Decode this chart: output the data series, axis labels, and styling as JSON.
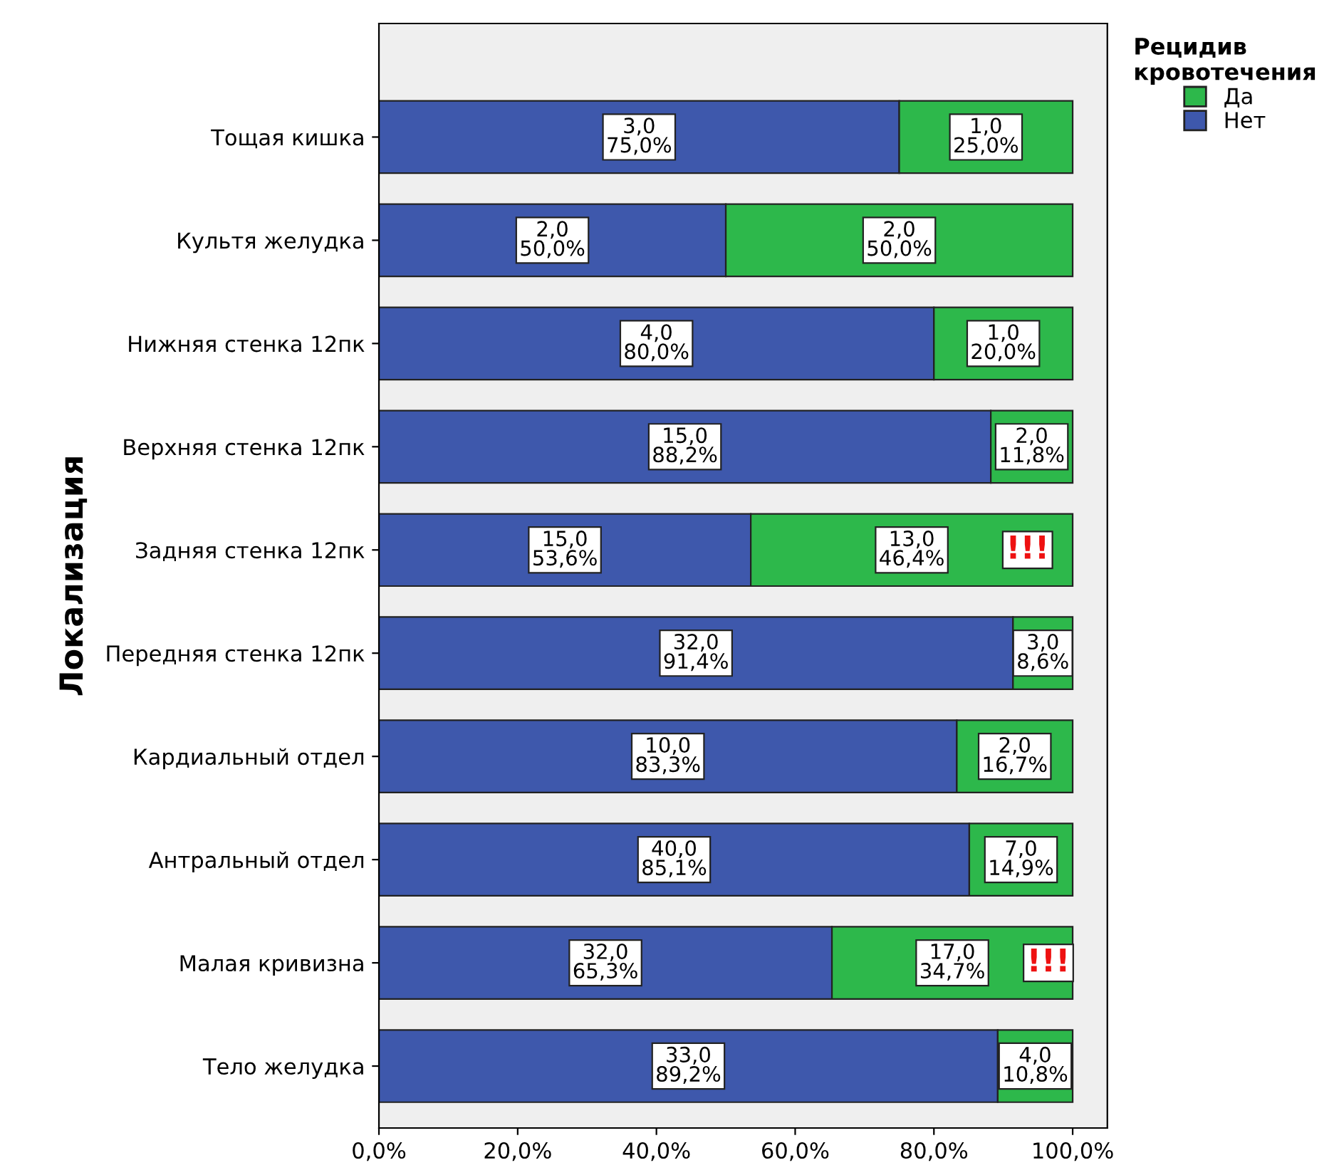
{
  "chart_data": {
    "type": "bar",
    "orientation": "horizontal",
    "stacked": true,
    "ylabel": "Локализация",
    "legend_title": "Рецидив\nкровотечения",
    "legend": "top right",
    "grid": false,
    "categories": [
      "Тощая кишка",
      "Культя желудка",
      "Нижняя стенка 12пк",
      "Верхняя стенка 12пк",
      "Задняя стенка 12пк",
      "Передняя стенка 12пк",
      "Кардиальный отдел",
      "Антральный отдел",
      "Малая кривизна",
      "Тело желудка"
    ],
    "series": [
      {
        "name": "Нет",
        "color": "#3e58ac",
        "values": [
          75.0,
          50.0,
          80.0,
          88.2,
          53.6,
          91.4,
          83.3,
          85.1,
          65.3,
          89.2
        ],
        "value_labels": [
          "3,0\n75,0%",
          "2,0\n50,0%",
          "4,0\n80,0%",
          "15,0\n88,2%",
          "15,0\n53,6%",
          "32,0\n91,4%",
          "10,0\n83,3%",
          "40,0\n85,1%",
          "32,0\n65,3%",
          "33,0\n89,2%"
        ]
      },
      {
        "name": "Да",
        "color": "#2db84b",
        "values": [
          25.0,
          50.0,
          20.0,
          11.8,
          46.4,
          8.6,
          16.7,
          14.9,
          34.7,
          10.8
        ],
        "value_labels": [
          "1,0\n25,0%",
          "2,0\n50,0%",
          "1,0\n20,0%",
          "2,0\n11,8%",
          "13,0\n46,4%",
          "3,0\n8,6%",
          "2,0\n16,7%",
          "7,0\n14,9%",
          "17,0\n34,7%",
          "4,0\n10,8%"
        ]
      }
    ],
    "xlim": [
      0,
      105
    ],
    "xticks": [
      {
        "value": 0,
        "label": "0,0%"
      },
      {
        "value": 20,
        "label": "20,0%"
      },
      {
        "value": 40,
        "label": "40,0%"
      },
      {
        "value": 60,
        "label": "60,0%"
      },
      {
        "value": 80,
        "label": "80,0%"
      },
      {
        "value": 100,
        "label": "100,0%"
      }
    ],
    "annotations": [
      {
        "text": "!!!",
        "x": 93.5,
        "y": "Задняя стенка 12пк"
      },
      {
        "text": "!!!",
        "x": 96.5,
        "y": "Малая кривизна"
      }
    ]
  }
}
